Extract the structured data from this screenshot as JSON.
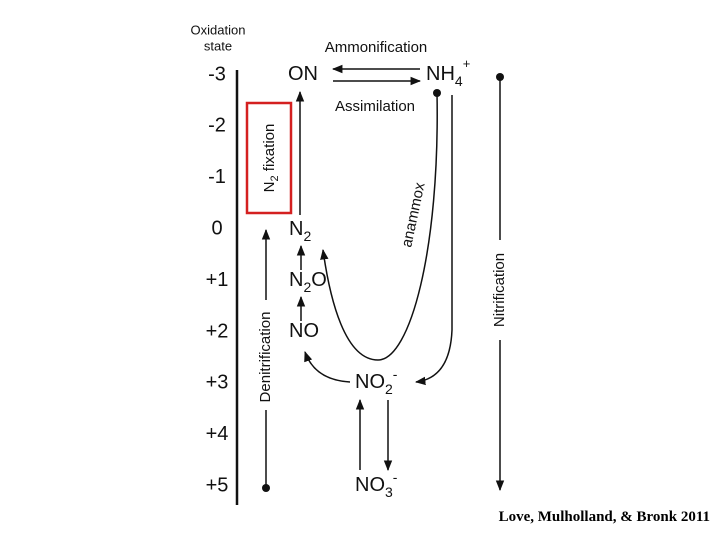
{
  "axis": {
    "title": [
      "Oxidation",
      "state"
    ],
    "levels": [
      "-3",
      "-2",
      "-1",
      "0",
      "+1",
      "+2",
      "+3",
      "+4",
      "+5"
    ]
  },
  "species": {
    "on": {
      "text": "ON"
    },
    "nh4": {
      "text": "NH",
      "sub": "4",
      "sup": "+"
    },
    "n2": {
      "text": "N",
      "sub": "2"
    },
    "n2o": {
      "text": "N",
      "sub": "2",
      "tail": "O"
    },
    "no": {
      "text": "NO"
    },
    "no2": {
      "text": "NO",
      "sub": "2",
      "sup": "-"
    },
    "no3": {
      "text": "NO",
      "sub": "3",
      "sup": "-"
    }
  },
  "processes": {
    "ammonification": "Ammonification",
    "assimilation": "Assimilation",
    "fixation": {
      "text": "N",
      "sub": "2",
      "tail": " fixation"
    },
    "anammox": "anammox",
    "nitrification": "Nitrification",
    "denitrification": "Denitrification"
  },
  "citation": "Love, Mulholland, & Bronk 2011"
}
